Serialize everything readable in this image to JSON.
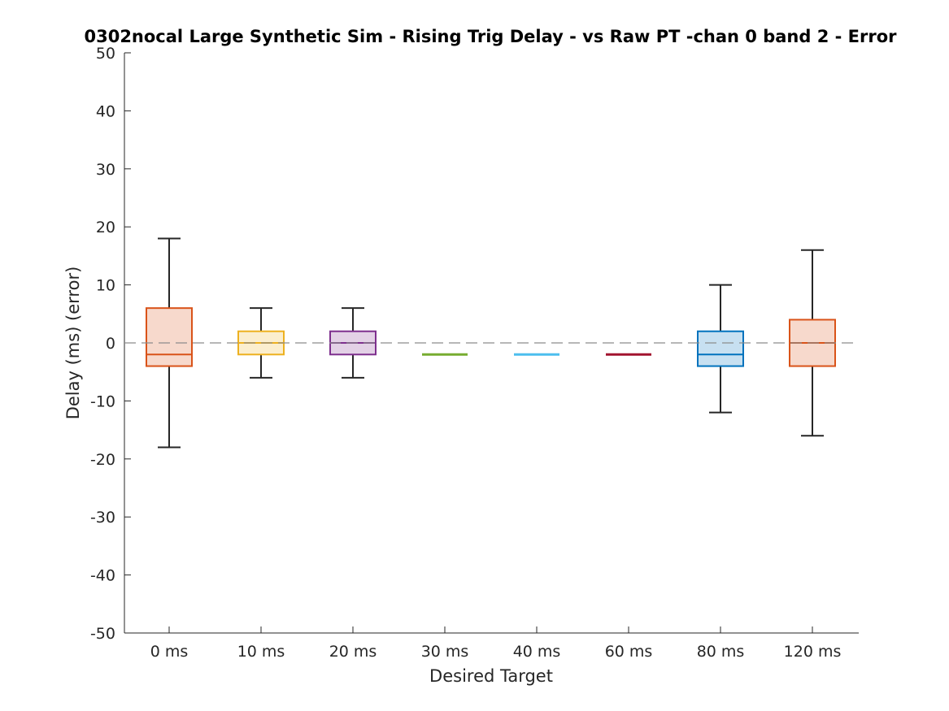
{
  "chart_data": {
    "type": "box",
    "title": "0302nocal Large Synthetic Sim - Rising Trig Delay - vs Raw PT -chan 0 band 2 - Error",
    "xlabel": "Desired Target",
    "ylabel": "Delay (ms) (error)",
    "ylim": [
      -50,
      50
    ],
    "yticks": [
      50,
      40,
      30,
      20,
      10,
      0,
      -10,
      -20,
      -30,
      -40,
      -50
    ],
    "ytick_labels": [
      "50",
      "40",
      "30",
      "20",
      "10",
      "0",
      "-10",
      "-20",
      "-30",
      "-40",
      "-50"
    ],
    "reference_line": {
      "y": 0,
      "style": "dashed",
      "color": "#8c8c8c"
    },
    "categories": [
      "0 ms",
      "10 ms",
      "20 ms",
      "30 ms",
      "40 ms",
      "60 ms",
      "80 ms",
      "120 ms"
    ],
    "boxes": [
      {
        "category": "0 ms",
        "whisker_low": -18,
        "q1": -4,
        "median": -2,
        "q3": 6,
        "whisker_high": 18,
        "color": "#d95319"
      },
      {
        "category": "10 ms",
        "whisker_low": -6,
        "q1": -2,
        "median": 0,
        "q3": 2,
        "whisker_high": 6,
        "color": "#edb120"
      },
      {
        "category": "20 ms",
        "whisker_low": -6,
        "q1": -2,
        "median": 0,
        "q3": 2,
        "whisker_high": 6,
        "color": "#7e2f8e"
      },
      {
        "category": "30 ms",
        "whisker_low": -2,
        "q1": -2,
        "median": -2,
        "q3": -2,
        "whisker_high": -2,
        "color": "#77ac30"
      },
      {
        "category": "40 ms",
        "whisker_low": -2,
        "q1": -2,
        "median": -2,
        "q3": -2,
        "whisker_high": -2,
        "color": "#4dbeee"
      },
      {
        "category": "60 ms",
        "whisker_low": -2,
        "q1": -2,
        "median": -2,
        "q3": -2,
        "whisker_high": -2,
        "color": "#a2142f"
      },
      {
        "category": "80 ms",
        "whisker_low": -12,
        "q1": -4,
        "median": -2,
        "q3": 2,
        "whisker_high": 10,
        "color": "#0072bd"
      },
      {
        "category": "120 ms",
        "whisker_low": -16,
        "q1": -4,
        "median": 0,
        "q3": 4,
        "whisker_high": 16,
        "color": "#d95319"
      }
    ],
    "grid": false,
    "legend": "none"
  }
}
